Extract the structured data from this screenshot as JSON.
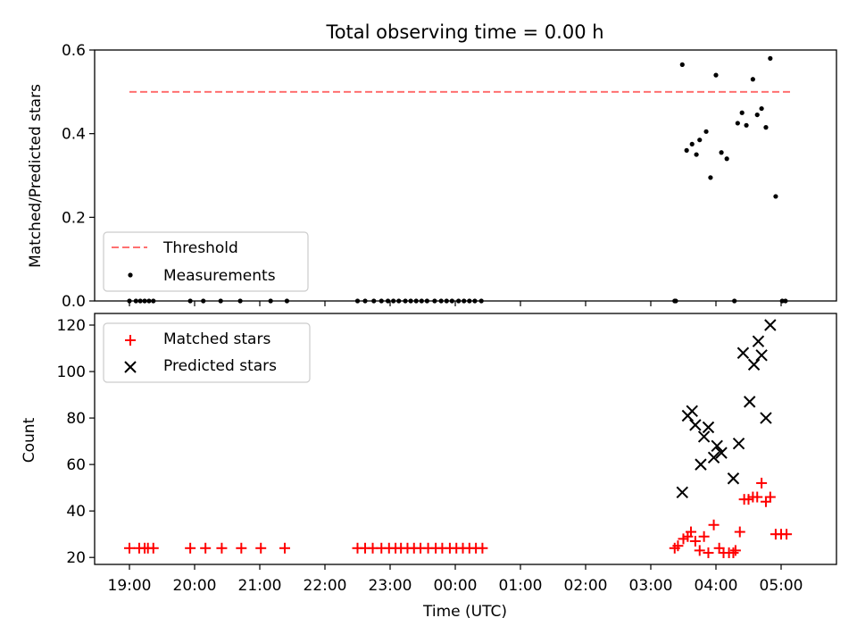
{
  "chart_data": [
    {
      "type": "scatter",
      "title": "Total observing time = 0.00 h",
      "ylabel": "Matched/Predicted stars",
      "xlabel": "",
      "ylim": [
        0,
        0.6
      ],
      "yticks": [
        0.0,
        0.2,
        0.4,
        0.6
      ],
      "ytick_labels": [
        "0.0",
        "0.2",
        "0.4",
        "0.6"
      ],
      "legend_placement": "lower-left",
      "threshold": {
        "name": "Threshold",
        "y": 0.5,
        "x_start": "19:00",
        "x_end": "05:10",
        "color": "#ff7070"
      },
      "series": [
        {
          "name": "Measurements",
          "color": "#000000",
          "points": [
            [
              "19:00",
              0
            ],
            [
              "19:06",
              0
            ],
            [
              "19:10",
              0
            ],
            [
              "19:14",
              0
            ],
            [
              "19:18",
              0
            ],
            [
              "19:22",
              0
            ],
            [
              "19:56",
              0
            ],
            [
              "20:08",
              0
            ],
            [
              "20:24",
              0
            ],
            [
              "20:42",
              0
            ],
            [
              "21:10",
              0
            ],
            [
              "21:25",
              0
            ],
            [
              "22:30",
              0
            ],
            [
              "22:37",
              0
            ],
            [
              "22:45",
              0
            ],
            [
              "22:52",
              0
            ],
            [
              "22:58",
              0
            ],
            [
              "23:03",
              0
            ],
            [
              "23:08",
              0
            ],
            [
              "23:14",
              0
            ],
            [
              "23:19",
              0
            ],
            [
              "23:24",
              0
            ],
            [
              "23:29",
              0
            ],
            [
              "23:34",
              0
            ],
            [
              "23:41",
              0
            ],
            [
              "23:47",
              0
            ],
            [
              "23:52",
              0
            ],
            [
              "23:57",
              0
            ],
            [
              "00:03",
              0
            ],
            [
              "00:08",
              0
            ],
            [
              "00:13",
              0
            ],
            [
              "00:18",
              0
            ],
            [
              "00:24",
              0
            ],
            [
              "03:22",
              0
            ],
            [
              "03:23",
              0
            ],
            [
              "03:29",
              0.565
            ],
            [
              "03:33",
              0.36
            ],
            [
              "03:38",
              0.375
            ],
            [
              "03:42",
              0.35
            ],
            [
              "03:45",
              0.385
            ],
            [
              "03:51",
              0.405
            ],
            [
              "03:55",
              0.295
            ],
            [
              "04:00",
              0.54
            ],
            [
              "04:05",
              0.355
            ],
            [
              "04:10",
              0.34
            ],
            [
              "04:17",
              0.0
            ],
            [
              "04:20",
              0.425
            ],
            [
              "04:24",
              0.45
            ],
            [
              "04:28",
              0.42
            ],
            [
              "04:34",
              0.53
            ],
            [
              "04:38",
              0.445
            ],
            [
              "04:42",
              0.46
            ],
            [
              "04:46",
              0.415
            ],
            [
              "04:50",
              0.58
            ],
            [
              "04:55",
              0.25
            ],
            [
              "05:01",
              0.0
            ],
            [
              "05:04",
              0.0
            ]
          ]
        }
      ]
    },
    {
      "type": "scatter",
      "title": "",
      "xlabel": "Time (UTC)",
      "ylabel": "Count",
      "ylim": [
        17,
        125
      ],
      "yticks": [
        20,
        40,
        60,
        80,
        100,
        120
      ],
      "ytick_labels": [
        "20",
        "40",
        "60",
        "80",
        "100",
        "120"
      ],
      "xticks": [
        "19:00",
        "20:00",
        "21:00",
        "22:00",
        "23:00",
        "00:00",
        "01:00",
        "02:00",
        "03:00",
        "04:00",
        "05:00"
      ],
      "legend_placement": "upper-left",
      "series": [
        {
          "name": "Matched stars",
          "marker": "plus",
          "color": "#ff0000",
          "points": [
            [
              "19:00",
              24
            ],
            [
              "19:09",
              24
            ],
            [
              "19:14",
              24
            ],
            [
              "19:17",
              24
            ],
            [
              "19:22",
              24
            ],
            [
              "19:56",
              24
            ],
            [
              "20:10",
              24
            ],
            [
              "20:25",
              24
            ],
            [
              "20:43",
              24
            ],
            [
              "21:01",
              24
            ],
            [
              "21:23",
              24
            ],
            [
              "22:30",
              24
            ],
            [
              "22:37",
              24
            ],
            [
              "22:44",
              24
            ],
            [
              "22:52",
              24
            ],
            [
              "22:59",
              24
            ],
            [
              "23:05",
              24
            ],
            [
              "23:10",
              24
            ],
            [
              "23:16",
              24
            ],
            [
              "23:22",
              24
            ],
            [
              "23:28",
              24
            ],
            [
              "23:35",
              24
            ],
            [
              "23:42",
              24
            ],
            [
              "23:48",
              24
            ],
            [
              "23:55",
              24
            ],
            [
              "00:01",
              24
            ],
            [
              "00:07",
              24
            ],
            [
              "00:13",
              24
            ],
            [
              "00:19",
              24
            ],
            [
              "00:25",
              24
            ],
            [
              "03:22",
              24
            ],
            [
              "03:25",
              25
            ],
            [
              "03:30",
              28
            ],
            [
              "03:34",
              29
            ],
            [
              "03:37",
              31
            ],
            [
              "03:41",
              27
            ],
            [
              "03:45",
              23
            ],
            [
              "03:49",
              29
            ],
            [
              "03:53",
              22
            ],
            [
              "03:58",
              34
            ],
            [
              "04:03",
              24
            ],
            [
              "04:07",
              22
            ],
            [
              "04:12",
              22
            ],
            [
              "04:16",
              22
            ],
            [
              "04:18",
              23
            ],
            [
              "04:22",
              31
            ],
            [
              "04:26",
              45
            ],
            [
              "04:30",
              45
            ],
            [
              "04:34",
              46
            ],
            [
              "04:38",
              46
            ],
            [
              "04:42",
              52
            ],
            [
              "04:46",
              44
            ],
            [
              "04:50",
              46
            ],
            [
              "04:55",
              30
            ],
            [
              "05:00",
              30
            ],
            [
              "05:05",
              30
            ]
          ]
        },
        {
          "name": "Predicted stars",
          "marker": "x",
          "color": "#000000",
          "points": [
            [
              "03:29",
              48
            ],
            [
              "03:34",
              81
            ],
            [
              "03:38",
              83
            ],
            [
              "03:41",
              77
            ],
            [
              "03:46",
              60
            ],
            [
              "03:49",
              72
            ],
            [
              "03:53",
              76
            ],
            [
              "03:58",
              63
            ],
            [
              "04:01",
              68
            ],
            [
              "04:05",
              65
            ],
            [
              "04:16",
              54
            ],
            [
              "04:21",
              69
            ],
            [
              "04:25",
              108
            ],
            [
              "04:31",
              87
            ],
            [
              "04:35",
              103
            ],
            [
              "04:39",
              113
            ],
            [
              "04:42",
              107
            ],
            [
              "04:46",
              80
            ],
            [
              "04:50",
              120
            ]
          ]
        }
      ]
    }
  ]
}
